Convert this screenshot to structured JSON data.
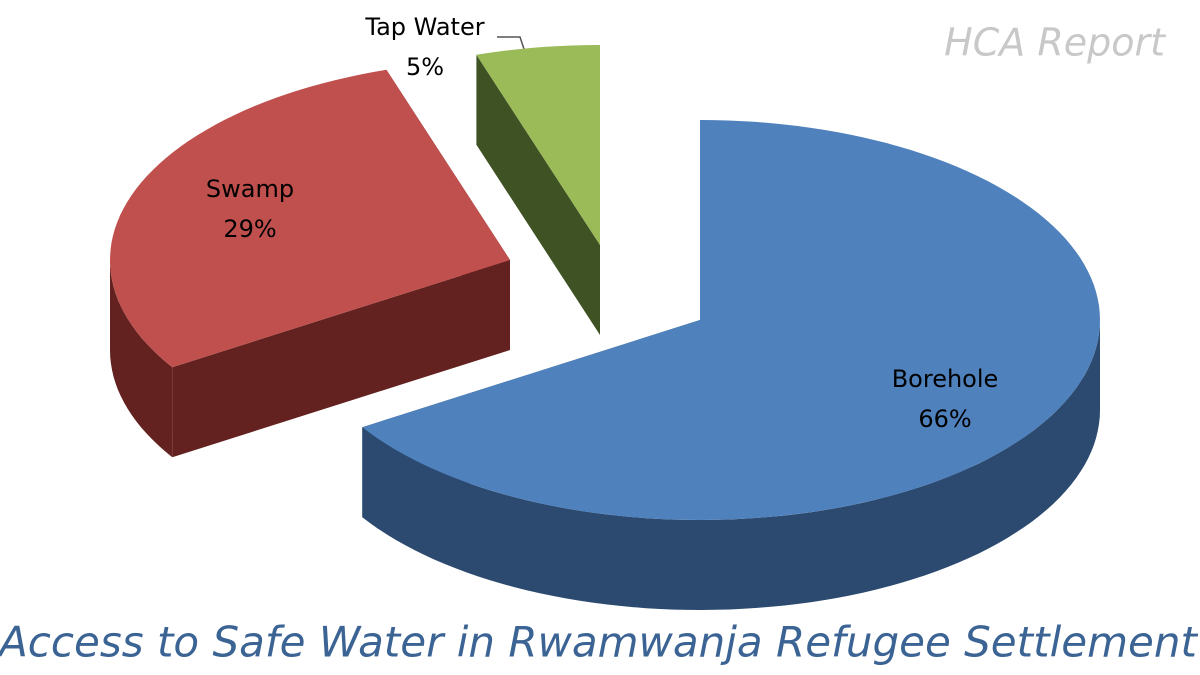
{
  "chart_data": {
    "type": "pie",
    "title": "Access to Safe Water in Rwamwanja Refugee Settlement",
    "subtitle": "HCA Report",
    "categories": [
      "Borehole",
      "Swamp",
      "Tap Water"
    ],
    "values": [
      66,
      29,
      5
    ],
    "value_labels": [
      "66%",
      "29%",
      "5%"
    ],
    "colors": [
      "#4f81bd",
      "#c0504d",
      "#9bbb59"
    ],
    "side_colors": [
      "#2c4a70",
      "#63221f",
      "#3f5224"
    ]
  }
}
